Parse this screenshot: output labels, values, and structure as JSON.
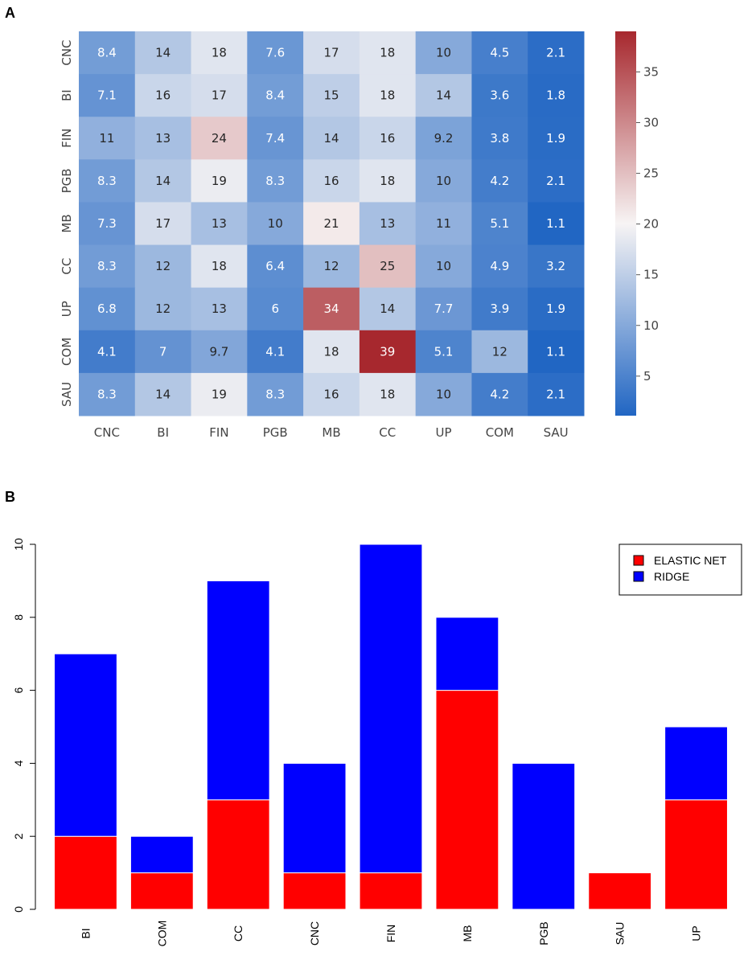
{
  "panel_labels": {
    "a": "A",
    "b": "B"
  },
  "chart_data": [
    {
      "type": "heatmap",
      "panel": "A",
      "rows": [
        "CNC",
        "BI",
        "FIN",
        "PGB",
        "MB",
        "CC",
        "UP",
        "COM",
        "SAU"
      ],
      "columns": [
        "CNC",
        "BI",
        "FIN",
        "PGB",
        "MB",
        "CC",
        "UP",
        "COM",
        "SAU"
      ],
      "values": [
        [
          8.4,
          14,
          18,
          7.6,
          17,
          18,
          10,
          4.5,
          2.1
        ],
        [
          7.1,
          16,
          17,
          8.4,
          15,
          18,
          14,
          3.6,
          1.8
        ],
        [
          11,
          13,
          24,
          7.4,
          14,
          16,
          9.2,
          3.8,
          1.9
        ],
        [
          8.3,
          14,
          19,
          8.3,
          16,
          18,
          10,
          4.2,
          2.1
        ],
        [
          7.3,
          17,
          13,
          10,
          21,
          13,
          11,
          5.1,
          1.1
        ],
        [
          8.3,
          12,
          18,
          6.4,
          12,
          25,
          10,
          4.9,
          3.2
        ],
        [
          6.8,
          12,
          13,
          6,
          34,
          14,
          7.7,
          3.9,
          1.9
        ],
        [
          4.1,
          7,
          9.7,
          4.1,
          18,
          39,
          5.1,
          12,
          1.1
        ],
        [
          8.3,
          14,
          19,
          8.3,
          16,
          18,
          10,
          4.2,
          2.1
        ]
      ],
      "value_labels": [
        [
          "8.4",
          "14",
          "18",
          "7.6",
          "17",
          "18",
          "10",
          "4.5",
          "2.1"
        ],
        [
          "7.1",
          "16",
          "17",
          "8.4",
          "15",
          "18",
          "14",
          "3.6",
          "1.8"
        ],
        [
          "11",
          "13",
          "24",
          "7.4",
          "14",
          "16",
          "9.2",
          "3.8",
          "1.9"
        ],
        [
          "8.3",
          "14",
          "19",
          "8.3",
          "16",
          "18",
          "10",
          "4.2",
          "2.1"
        ],
        [
          "7.3",
          "17",
          "13",
          "10",
          "21",
          "13",
          "11",
          "5.1",
          "1.1"
        ],
        [
          "8.3",
          "12",
          "18",
          "6.4",
          "12",
          "25",
          "10",
          "4.9",
          "3.2"
        ],
        [
          "6.8",
          "12",
          "13",
          "6",
          "34",
          "14",
          "7.7",
          "3.9",
          "1.9"
        ],
        [
          "4.1",
          "7",
          "9.7",
          "4.1",
          "18",
          "39",
          "5.1",
          "12",
          "1.1"
        ],
        [
          "8.3",
          "14",
          "19",
          "8.3",
          "16",
          "18",
          "10",
          "4.2",
          "2.1"
        ]
      ],
      "colormap": {
        "name": "coolwarm",
        "low": "#2166c3",
        "mid": "#f7f4f4",
        "high": "#a7282e"
      },
      "color_range": [
        1.1,
        39
      ],
      "colorbar_ticks": [
        5,
        10,
        15,
        20,
        25,
        30,
        35
      ],
      "colorbar_tick_labels": [
        "5",
        "10",
        "15",
        "20",
        "25",
        "30",
        "35"
      ]
    },
    {
      "type": "bar",
      "stacked": true,
      "panel": "B",
      "categories": [
        "BI",
        "COM",
        "CC",
        "CNC",
        "FIN",
        "MB",
        "PGB",
        "SAU",
        "UP"
      ],
      "series": [
        {
          "name": "ELASTIC NET",
          "color": "#ff0000",
          "values": [
            2,
            1,
            3,
            1,
            1,
            6,
            0,
            1,
            3
          ]
        },
        {
          "name": "RIDGE",
          "color": "#0000ff",
          "values": [
            5,
            1,
            6,
            3,
            9,
            2,
            4,
            0,
            2
          ]
        }
      ],
      "ylim": [
        0,
        10
      ],
      "yticks": [
        0,
        2,
        4,
        6,
        8,
        10
      ],
      "ytick_labels": [
        "0",
        "2",
        "4",
        "6",
        "8",
        "10"
      ],
      "legend_position": "top-right",
      "xlabel": "",
      "ylabel": ""
    }
  ]
}
